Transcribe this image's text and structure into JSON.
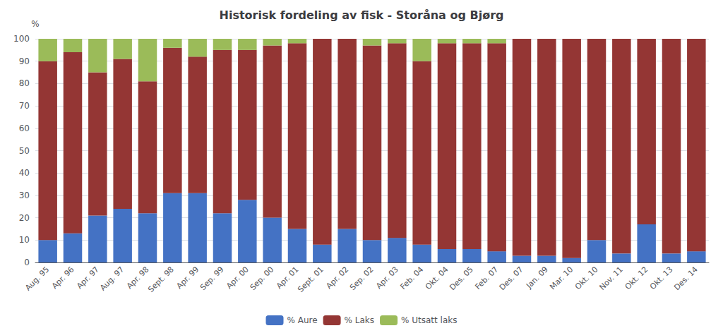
{
  "chart_data": {
    "type": "bar",
    "stacked": true,
    "title": "Historisk fordeling av fisk - Storåna og Bjørg",
    "ylabel": "%",
    "categories": [
      "Aug. 95",
      "Apr. 96",
      "Apr. 97",
      "Aug. 97",
      "Apr. 98",
      "Sept. 98",
      "Apr. 99",
      "Sep. 99",
      "Apr. 00",
      "Sep. 00",
      "Apr. 01",
      "Sept. 01",
      "Apr. 02",
      "Sep. 02",
      "Apr. 03",
      "Feb. 04",
      "Okt. 04",
      "Des. 05",
      "Feb. 07",
      "Des. 07",
      "Jan. 09",
      "Mar. 10",
      "Okt. 10",
      "Nov. 11",
      "Okt. 12",
      "Okt. 13",
      "Des. 14"
    ],
    "series": [
      {
        "name": "% Aure",
        "color": "#4472C4",
        "values": [
          10,
          13,
          21,
          24,
          22,
          31,
          31,
          22,
          28,
          20,
          15,
          8,
          15,
          10,
          11,
          8,
          6,
          6,
          5,
          3,
          3,
          2,
          10,
          4,
          17,
          4,
          5
        ]
      },
      {
        "name": "% Laks",
        "color": "#943634",
        "values": [
          80,
          81,
          64,
          67,
          59,
          65,
          61,
          73,
          67,
          77,
          83,
          92,
          85,
          87,
          87,
          82,
          92,
          92,
          93,
          97,
          97,
          98,
          90,
          96,
          83,
          96,
          95
        ]
      },
      {
        "name": "% Utsatt laks",
        "color": "#9BBB59",
        "values": [
          10,
          6,
          15,
          9,
          19,
          4,
          8,
          5,
          5,
          3,
          2,
          0,
          0,
          3,
          2,
          10,
          2,
          2,
          2,
          0,
          0,
          0,
          0,
          0,
          0,
          0,
          0
        ]
      }
    ],
    "ylim": [
      0,
      100
    ],
    "yticks": [
      0,
      10,
      20,
      30,
      40,
      50,
      60,
      70,
      80,
      90,
      100
    ],
    "grid": true,
    "legend": "bottom"
  }
}
